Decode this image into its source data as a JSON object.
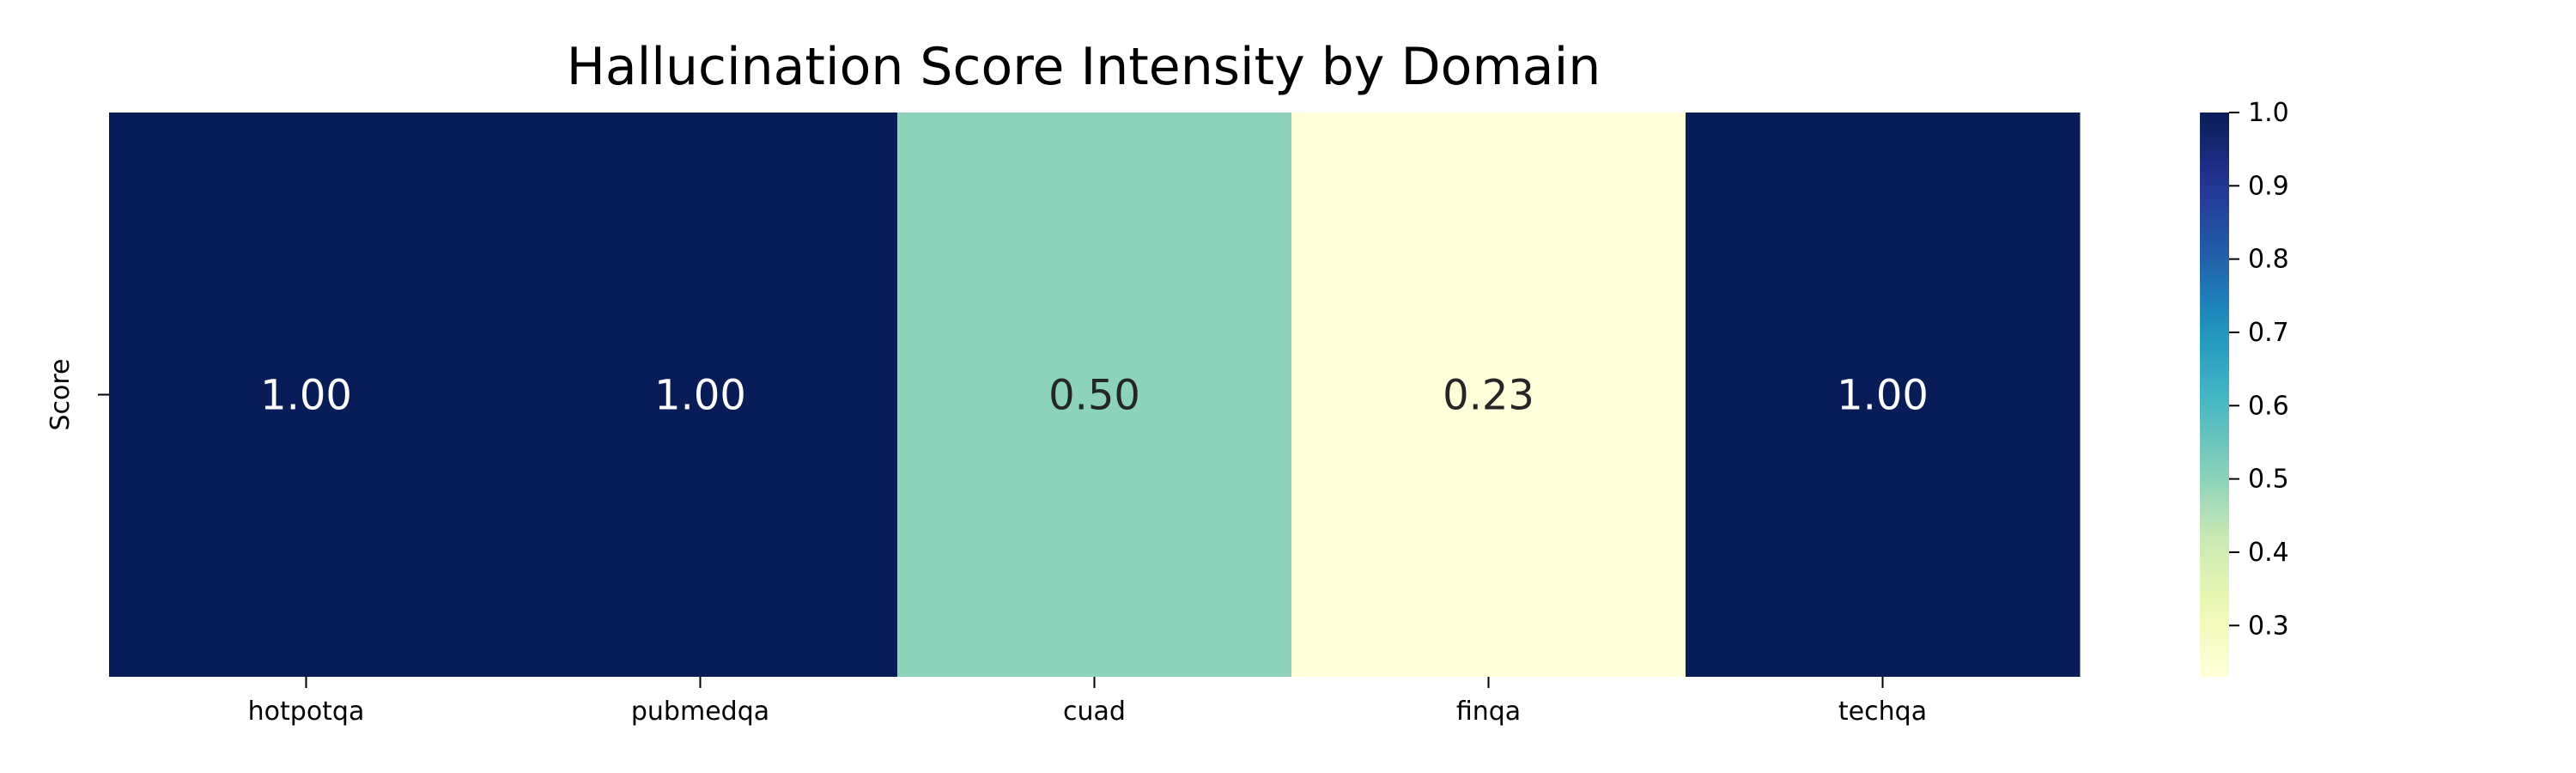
{
  "chart_data": {
    "type": "heatmap",
    "title": "Hallucination Score Intensity by Domain",
    "xlabel": "",
    "ylabel": "",
    "row_labels": [
      "Score"
    ],
    "categories": [
      "hotpotqa",
      "pubmedqa",
      "cuad",
      "finqa",
      "techqa"
    ],
    "values": [
      [
        1.0,
        1.0,
        0.5,
        0.23,
        1.0
      ]
    ],
    "value_format": "0.00",
    "colormap": "YlGnBu",
    "color_range": [
      0.23,
      1.0
    ],
    "colorbar_ticks": [
      "0.3",
      "0.4",
      "0.5",
      "0.6",
      "0.7",
      "0.8",
      "0.9",
      "1.0"
    ],
    "annotation_colors": {
      "dark_cell_text": "#ffffff",
      "light_cell_text": "#262626"
    }
  }
}
